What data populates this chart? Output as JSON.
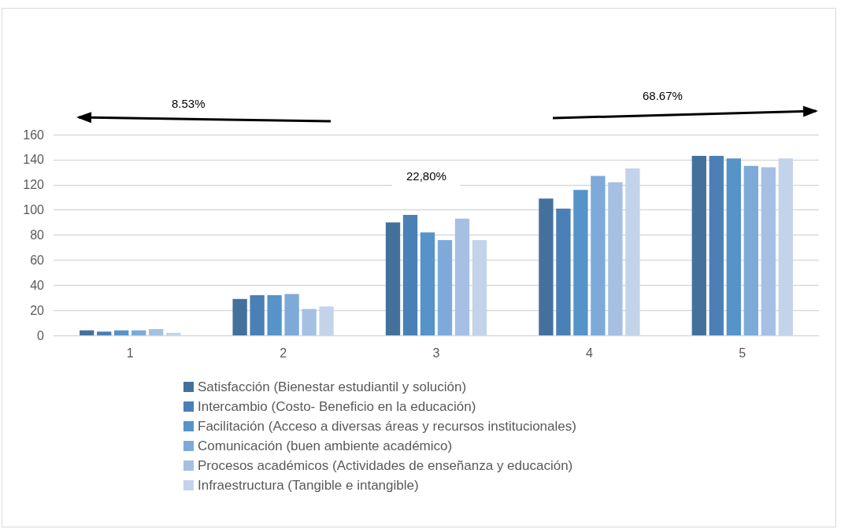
{
  "chart_data": {
    "type": "bar",
    "categories": [
      "1",
      "2",
      "3",
      "4",
      "5"
    ],
    "series": [
      {
        "name": "Satisfacción (Bienestar estudiantil y solución)",
        "color": "#44719c",
        "values": [
          4,
          29,
          90,
          109,
          143
        ]
      },
      {
        "name": "Intercambio (Costo- Beneficio en la educación)",
        "color": "#4a80b5",
        "values": [
          3,
          32,
          96,
          101,
          143
        ]
      },
      {
        "name": "Facilitación (Acceso a diversas áreas y recursos institucionales)",
        "color": "#5693c9",
        "values": [
          4,
          32,
          82,
          116,
          141
        ]
      },
      {
        "name": "Comunicación (buen ambiente académico)",
        "color": "#7daad9",
        "values": [
          4,
          33,
          76,
          127,
          135
        ]
      },
      {
        "name": "Procesos académicos (Actividades de enseñanza y educación)",
        "color": "#a5c0e3",
        "values": [
          5,
          21,
          93,
          122,
          134
        ]
      },
      {
        "name": "Infraestructura (Tangible e intangible)",
        "color": "#c3d4ea",
        "values": [
          2,
          23,
          76,
          133,
          141
        ]
      }
    ],
    "ylim": [
      0,
      160
    ],
    "yticks": [
      0,
      20,
      40,
      60,
      80,
      100,
      120,
      140,
      160
    ],
    "grid": "y",
    "legend": "bottom",
    "annotations": [
      "8.53%",
      "22,80%",
      "68.67%"
    ]
  }
}
